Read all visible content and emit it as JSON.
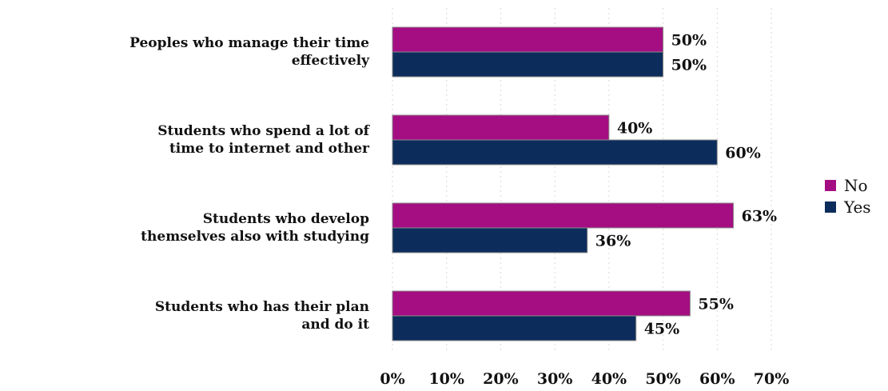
{
  "chart_data": {
    "type": "bar",
    "orientation": "horizontal",
    "categories": [
      [
        "Peoples who manage their time",
        "effectively"
      ],
      [
        "Students who spend a lot of",
        "time to internet and other"
      ],
      [
        "Students who develop",
        "themselves also with studying"
      ],
      [
        "Students who has their plan",
        "and do it"
      ]
    ],
    "series": [
      {
        "name": "No",
        "color": "#a50e82",
        "values": [
          50,
          40,
          63,
          55
        ],
        "labels": [
          "50%",
          "40%",
          "63%",
          "55%"
        ]
      },
      {
        "name": "Yes",
        "color": "#0c2d5c",
        "values": [
          50,
          60,
          36,
          45
        ],
        "labels": [
          "50%",
          "60%",
          "36%",
          "45%"
        ]
      }
    ],
    "xlim": [
      0,
      70
    ],
    "xticks": [
      0,
      10,
      20,
      30,
      40,
      50,
      60,
      70
    ],
    "xtick_labels": [
      "0%",
      "10%",
      "20%",
      "30%",
      "40%",
      "50%",
      "60%",
      "70%"
    ],
    "grid": true,
    "legend_position": "right",
    "title": "",
    "xlabel": "",
    "ylabel": ""
  }
}
